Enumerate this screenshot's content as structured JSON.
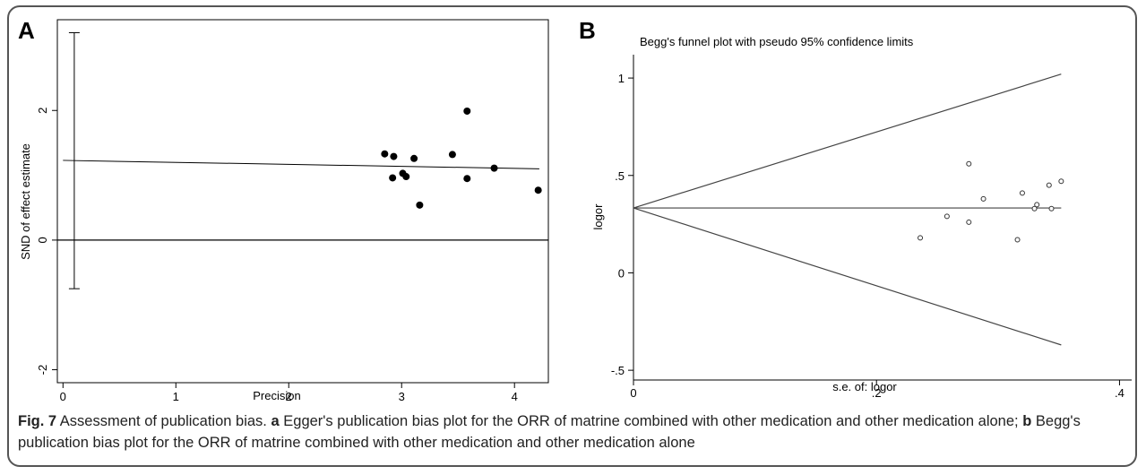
{
  "caption": {
    "fig_label": "Fig. 7",
    "title": " Assessment of publication bias. ",
    "a_label": "a",
    "a_text": " Egger's publication bias plot for the ORR of matrine combined with other medication and other medication alone; ",
    "b_label": "b",
    "b_text": " Begg's publication bias plot for the ORR of matrine combined with other medication and other medication alone"
  },
  "chart_data": [
    {
      "panel": "A",
      "type": "scatter",
      "title": "",
      "xlabel": "Precision",
      "ylabel": "SND of effect estimate",
      "xlim": [
        -0.05,
        4.3
      ],
      "ylim": [
        -2.2,
        3.4
      ],
      "xticks": [
        "0",
        "1",
        "2",
        "3",
        "4"
      ],
      "xtick_values": [
        0,
        1,
        2,
        3,
        4
      ],
      "yticks": [
        "-2",
        "0",
        "2"
      ],
      "ytick_values": [
        -2,
        0,
        2
      ],
      "points": [
        {
          "x": 2.85,
          "y": 1.33
        },
        {
          "x": 2.92,
          "y": 0.96
        },
        {
          "x": 2.93,
          "y": 1.29
        },
        {
          "x": 3.01,
          "y": 1.03
        },
        {
          "x": 3.04,
          "y": 0.98
        },
        {
          "x": 3.11,
          "y": 1.26
        },
        {
          "x": 3.16,
          "y": 0.54
        },
        {
          "x": 3.45,
          "y": 1.32
        },
        {
          "x": 3.58,
          "y": 1.99
        },
        {
          "x": 3.58,
          "y": 0.95
        },
        {
          "x": 3.82,
          "y": 1.11
        },
        {
          "x": 4.21,
          "y": 0.77
        }
      ],
      "regression_line": {
        "x": [
          0,
          4.22
        ],
        "y": [
          1.23,
          1.1
        ]
      },
      "zero_line_y": 0,
      "intercept_ci": {
        "x": 0.1,
        "low": -0.75,
        "high": 3.2
      }
    },
    {
      "panel": "B",
      "type": "scatter",
      "title": "Begg's funnel plot with pseudo 95% confidence limits",
      "xlabel": "s.e. of: logor",
      "ylabel": "logor",
      "xlim": [
        0,
        0.41
      ],
      "ylim": [
        -0.55,
        1.12
      ],
      "xticks": [
        "0",
        ".2",
        ".4"
      ],
      "xtick_values": [
        0,
        0.2,
        0.4
      ],
      "yticks": [
        "-.5",
        "0",
        ".5",
        "1"
      ],
      "ytick_values": [
        -0.5,
        0,
        0.5,
        1
      ],
      "points": [
        {
          "x": 0.236,
          "y": 0.18
        },
        {
          "x": 0.258,
          "y": 0.29
        },
        {
          "x": 0.276,
          "y": 0.26
        },
        {
          "x": 0.276,
          "y": 0.56
        },
        {
          "x": 0.288,
          "y": 0.38
        },
        {
          "x": 0.316,
          "y": 0.17
        },
        {
          "x": 0.32,
          "y": 0.41
        },
        {
          "x": 0.33,
          "y": 0.33
        },
        {
          "x": 0.332,
          "y": 0.35
        },
        {
          "x": 0.342,
          "y": 0.45
        },
        {
          "x": 0.344,
          "y": 0.33
        },
        {
          "x": 0.352,
          "y": 0.47
        }
      ],
      "pooled_estimate": 0.333,
      "funnel_limits": {
        "upper_end": 1.02,
        "lower_end": -0.37,
        "x_end": 0.352
      }
    }
  ]
}
